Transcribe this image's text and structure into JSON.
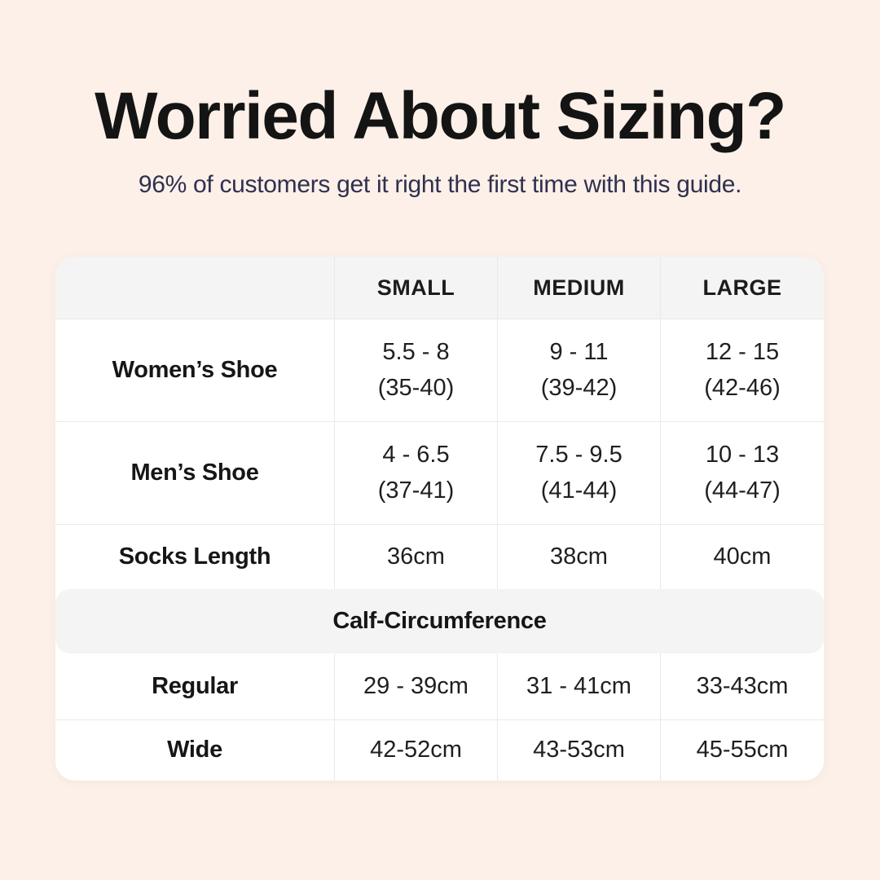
{
  "page": {
    "title": "Worried About Sizing?",
    "subtitle": "96% of customers get it right the first time with this guide."
  },
  "table": {
    "corner_label": "",
    "columns": [
      "SMALL",
      "MEDIUM",
      "LARGE"
    ],
    "rows": [
      {
        "label": "Women’s Shoe",
        "cells": [
          {
            "line1": "5.5 - 8",
            "line2": "(35-40)"
          },
          {
            "line1": "9 - 11",
            "line2": "(39-42)"
          },
          {
            "line1": "12 - 15",
            "line2": "(42-46)"
          }
        ]
      },
      {
        "label": "Men’s Shoe",
        "cells": [
          {
            "line1": "4 - 6.5",
            "line2": "(37-41)"
          },
          {
            "line1": "7.5 - 9.5",
            "line2": "(41-44)"
          },
          {
            "line1": "10 - 13",
            "line2": "(44-47)"
          }
        ]
      },
      {
        "label": "Socks Length",
        "cells": [
          {
            "line1": "36cm"
          },
          {
            "line1": "38cm"
          },
          {
            "line1": "40cm"
          }
        ]
      }
    ],
    "section_header": "Calf-Circumference",
    "calf_rows": [
      {
        "label": "Regular",
        "cells": [
          "29 - 39cm",
          "31 - 41cm",
          "33-43cm"
        ]
      },
      {
        "label": "Wide",
        "cells": [
          "42-52cm",
          "43-53cm",
          "45-55cm"
        ]
      }
    ]
  },
  "colors": {
    "background": "#fcf0e8",
    "table_background": "#ffffff",
    "header_band": "#f4f4f5",
    "divider": "#e9e9e9",
    "title_text": "#141414",
    "subtitle_text": "#30304f",
    "table_text": "#1f1f1f"
  }
}
